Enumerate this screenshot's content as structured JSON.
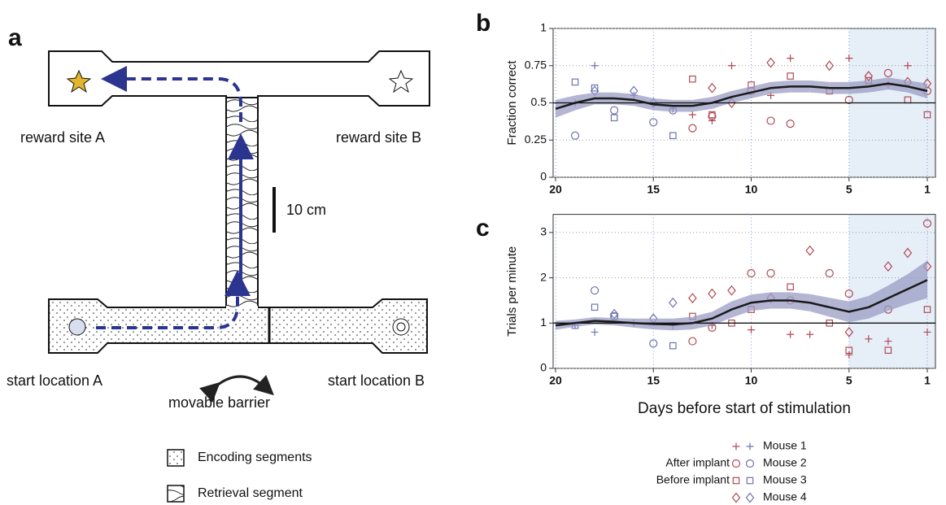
{
  "panel_labels": [
    "a",
    "b",
    "c"
  ],
  "diagram": {
    "reward_site_a": "reward site A",
    "reward_site_b": "reward site B",
    "scale_bar": "10 cm",
    "start_location_a": "start location A",
    "start_location_b": "start location B",
    "barrier": "movable barrier",
    "legend": [
      "Encoding segments",
      "Retrieval segment"
    ]
  },
  "legend": {
    "phases": [
      {
        "label": "After implant",
        "color": "#b04a55"
      },
      {
        "label": "Before implant",
        "color": "#6f73b0"
      }
    ],
    "mice": [
      {
        "name": "Mouse 1",
        "marker": "plus"
      },
      {
        "name": "Mouse 2",
        "marker": "circle"
      },
      {
        "name": "Mouse 3",
        "marker": "square"
      },
      {
        "name": "Mouse 4",
        "marker": "diamond"
      }
    ]
  },
  "chart_data": [
    {
      "type": "scatter",
      "ylabel": "Fraction correct",
      "xlim": [
        20,
        1
      ],
      "xticks": [
        20,
        15,
        10,
        5,
        1
      ],
      "ylim": [
        0,
        1
      ],
      "yticks": [
        0,
        0.25,
        0.5,
        0.75,
        1
      ],
      "grid": true,
      "hline": 0.5,
      "shaded_xlim": [
        5,
        1
      ],
      "line_color": "#1a1a1a",
      "band_color": "#9a9cc4",
      "x": [
        20,
        19,
        18,
        17,
        16,
        15,
        14,
        13,
        12,
        11,
        10,
        9,
        8,
        7,
        6,
        5,
        4,
        3,
        2,
        1
      ],
      "mean": [
        0.46,
        0.5,
        0.53,
        0.53,
        0.52,
        0.49,
        0.48,
        0.48,
        0.5,
        0.54,
        0.57,
        0.6,
        0.61,
        0.61,
        0.6,
        0.6,
        0.61,
        0.63,
        0.61,
        0.58
      ],
      "band_lower": [
        0.4,
        0.45,
        0.49,
        0.49,
        0.48,
        0.45,
        0.44,
        0.44,
        0.46,
        0.5,
        0.53,
        0.56,
        0.57,
        0.57,
        0.56,
        0.56,
        0.57,
        0.59,
        0.57,
        0.53
      ],
      "band_upper": [
        0.52,
        0.55,
        0.57,
        0.57,
        0.56,
        0.53,
        0.52,
        0.52,
        0.54,
        0.58,
        0.61,
        0.64,
        0.65,
        0.65,
        0.64,
        0.64,
        0.65,
        0.67,
        0.65,
        0.63
      ],
      "series": [
        {
          "after": {
            "x": [
              13,
              12,
              11,
              9,
              8,
              5,
              3,
              2
            ],
            "values": [
              0.42,
              0.38,
              0.75,
              0.55,
              0.8,
              0.8,
              0.62,
              0.75
            ]
          },
          "before": {
            "x": [
              19,
              18,
              16,
              14
            ],
            "values": [
              0.5,
              0.75,
              0.55,
              0.46
            ]
          }
        },
        {
          "after": {
            "x": [
              13,
              12,
              10,
              9,
              8,
              5,
              3,
              1
            ],
            "values": [
              0.33,
              0.41,
              0.58,
              0.38,
              0.36,
              0.52,
              0.7,
              0.58
            ]
          },
          "before": {
            "x": [
              19,
              17,
              15,
              14
            ],
            "values": [
              0.28,
              0.45,
              0.37,
              0.45
            ]
          }
        },
        {
          "after": {
            "x": [
              13,
              12,
              10,
              8,
              6,
              4,
              2,
              1
            ],
            "values": [
              0.66,
              0.42,
              0.62,
              0.68,
              0.58,
              0.65,
              0.52,
              0.42
            ]
          },
          "before": {
            "x": [
              19,
              18,
              17,
              14
            ],
            "values": [
              0.64,
              0.6,
              0.4,
              0.28
            ]
          }
        },
        {
          "after": {
            "x": [
              12,
              11,
              9,
              6,
              4,
              2,
              1
            ],
            "values": [
              0.6,
              0.5,
              0.77,
              0.75,
              0.68,
              0.64,
              0.63
            ]
          },
          "before": {
            "x": [
              18,
              16,
              15
            ],
            "values": [
              0.58,
              0.58,
              0.5
            ]
          }
        }
      ]
    },
    {
      "type": "scatter",
      "ylabel": "Trials per minute",
      "xlabel": "Days before start of stimulation",
      "xlim": [
        20,
        1
      ],
      "xticks": [
        20,
        15,
        10,
        5,
        1
      ],
      "ylim": [
        0,
        3.4
      ],
      "yticks": [
        0,
        1,
        2,
        3
      ],
      "grid": true,
      "hline": 1,
      "shaded_xlim": [
        5,
        1
      ],
      "line_color": "#1a1a1a",
      "band_color": "#9a9cc4",
      "x": [
        20,
        19,
        18,
        17,
        16,
        15,
        14,
        13,
        12,
        11,
        10,
        9,
        8,
        7,
        6,
        5,
        4,
        3,
        2,
        1
      ],
      "mean": [
        0.95,
        1.0,
        1.05,
        1.03,
        1.0,
        0.98,
        0.97,
        1.0,
        1.1,
        1.3,
        1.45,
        1.5,
        1.5,
        1.45,
        1.35,
        1.25,
        1.35,
        1.55,
        1.75,
        1.95
      ],
      "band_lower": [
        0.85,
        0.92,
        0.97,
        0.95,
        0.9,
        0.86,
        0.84,
        0.86,
        0.95,
        1.12,
        1.27,
        1.32,
        1.32,
        1.26,
        1.14,
        1.02,
        1.1,
        1.27,
        1.42,
        1.55
      ],
      "band_upper": [
        1.05,
        1.08,
        1.13,
        1.11,
        1.1,
        1.1,
        1.1,
        1.14,
        1.25,
        1.48,
        1.63,
        1.68,
        1.68,
        1.64,
        1.56,
        1.48,
        1.6,
        1.83,
        2.08,
        2.38
      ],
      "series": [
        {
          "after": {
            "x": [
              12,
              10,
              8,
              7,
              5,
              4,
              3,
              1
            ],
            "values": [
              0.95,
              0.85,
              0.75,
              0.75,
              0.3,
              0.65,
              0.6,
              0.8
            ]
          },
          "before": {
            "x": [
              19,
              18,
              16,
              14
            ],
            "values": [
              0.95,
              0.8,
              1.0,
              0.95
            ]
          }
        },
        {
          "after": {
            "x": [
              13,
              12,
              10,
              9,
              8,
              6,
              5,
              3,
              1
            ],
            "values": [
              0.6,
              0.9,
              2.1,
              2.1,
              1.5,
              2.1,
              1.65,
              1.3,
              3.2
            ]
          },
          "before": {
            "x": [
              18,
              17,
              15
            ],
            "values": [
              1.72,
              1.15,
              0.55
            ]
          }
        },
        {
          "after": {
            "x": [
              13,
              11,
              10,
              8,
              6,
              5,
              3,
              1
            ],
            "values": [
              1.15,
              1.0,
              1.3,
              1.8,
              1.0,
              0.4,
              0.4,
              1.3
            ]
          },
          "before": {
            "x": [
              19,
              18,
              17,
              14
            ],
            "values": [
              0.95,
              1.35,
              1.15,
              0.5
            ]
          }
        },
        {
          "after": {
            "x": [
              13,
              12,
              11,
              9,
              7,
              5,
              3,
              2,
              1
            ],
            "values": [
              1.55,
              1.65,
              1.72,
              1.55,
              2.6,
              0.8,
              2.25,
              2.55,
              2.25
            ]
          },
          "before": {
            "x": [
              17,
              15,
              14
            ],
            "values": [
              1.2,
              1.1,
              1.45
            ]
          }
        }
      ]
    }
  ]
}
